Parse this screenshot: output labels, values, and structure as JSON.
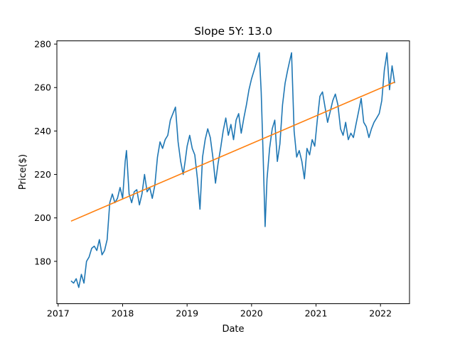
{
  "chart_data": {
    "type": "line",
    "title": "Slope 5Y: 13.0",
    "xlabel": "Date",
    "ylabel": "Price($)",
    "x_ticks": [
      "2017",
      "2018",
      "2019",
      "2020",
      "2021",
      "2022"
    ],
    "y_ticks": [
      180,
      200,
      220,
      240,
      260,
      280
    ],
    "xlim": [
      2016.98,
      2022.45
    ],
    "ylim": [
      160.5,
      281.5
    ],
    "grid": false,
    "legend": "none",
    "series": [
      {
        "color": "#1f77b4",
        "x": [
          2017.2,
          2017.24,
          2017.28,
          2017.32,
          2017.36,
          2017.4,
          2017.44,
          2017.48,
          2017.52,
          2017.56,
          2017.6,
          2017.64,
          2017.68,
          2017.72,
          2017.76,
          2017.8,
          2017.84,
          2017.88,
          2017.92,
          2017.96,
          2018.0,
          2018.04,
          2018.06,
          2018.1,
          2018.14,
          2018.18,
          2018.22,
          2018.26,
          2018.3,
          2018.34,
          2018.38,
          2018.42,
          2018.46,
          2018.5,
          2018.54,
          2018.58,
          2018.62,
          2018.66,
          2018.7,
          2018.74,
          2018.78,
          2018.82,
          2018.86,
          2018.9,
          2018.94,
          2018.97,
          2019.0,
          2019.04,
          2019.08,
          2019.12,
          2019.16,
          2019.2,
          2019.24,
          2019.28,
          2019.32,
          2019.36,
          2019.4,
          2019.44,
          2019.48,
          2019.52,
          2019.56,
          2019.6,
          2019.64,
          2019.68,
          2019.72,
          2019.76,
          2019.8,
          2019.84,
          2019.88,
          2019.92,
          2019.96,
          2020.0,
          2020.04,
          2020.08,
          2020.12,
          2020.15,
          2020.18,
          2020.21,
          2020.24,
          2020.28,
          2020.32,
          2020.36,
          2020.4,
          2020.44,
          2020.48,
          2020.52,
          2020.56,
          2020.59,
          2020.62,
          2020.66,
          2020.7,
          2020.74,
          2020.78,
          2020.82,
          2020.86,
          2020.9,
          2020.94,
          2020.98,
          2021.02,
          2021.06,
          2021.1,
          2021.14,
          2021.18,
          2021.22,
          2021.26,
          2021.3,
          2021.34,
          2021.38,
          2021.42,
          2021.46,
          2021.5,
          2021.54,
          2021.58,
          2021.62,
          2021.66,
          2021.7,
          2021.74,
          2021.78,
          2021.82,
          2021.86,
          2021.9,
          2021.94,
          2021.98,
          2022.02,
          2022.06,
          2022.1,
          2022.14,
          2022.18,
          2022.22
        ],
        "y": [
          171,
          170,
          172,
          168,
          174,
          170,
          180,
          182,
          186,
          187,
          185,
          190,
          183,
          185,
          190,
          207,
          211,
          207,
          209,
          214,
          209,
          226,
          231,
          211,
          207,
          212,
          213,
          206,
          211,
          220,
          212,
          214,
          209,
          215,
          228,
          235,
          232,
          236,
          238,
          245,
          248,
          251,
          235,
          226,
          220,
          226,
          233,
          238,
          232,
          229,
          218,
          204,
          228,
          236,
          241,
          237,
          228,
          216,
          225,
          232,
          240,
          246,
          238,
          243,
          236,
          245,
          248,
          239,
          246,
          252,
          259,
          264,
          268,
          272,
          276,
          258,
          228,
          196,
          218,
          232,
          241,
          245,
          226,
          234,
          252,
          262,
          268,
          272,
          276,
          240,
          228,
          231,
          226,
          218,
          232,
          229,
          236,
          233,
          245,
          256,
          258,
          251,
          244,
          249,
          254,
          257,
          252,
          241,
          238,
          244,
          236,
          239,
          237,
          243,
          249,
          255,
          244,
          242,
          237,
          241,
          244,
          246,
          248,
          254,
          268,
          276,
          259,
          270,
          262
        ]
      },
      {
        "color": "#ff7f0e",
        "x": [
          2017.2,
          2022.22
        ],
        "y": [
          198.5,
          262.5
        ]
      }
    ]
  }
}
